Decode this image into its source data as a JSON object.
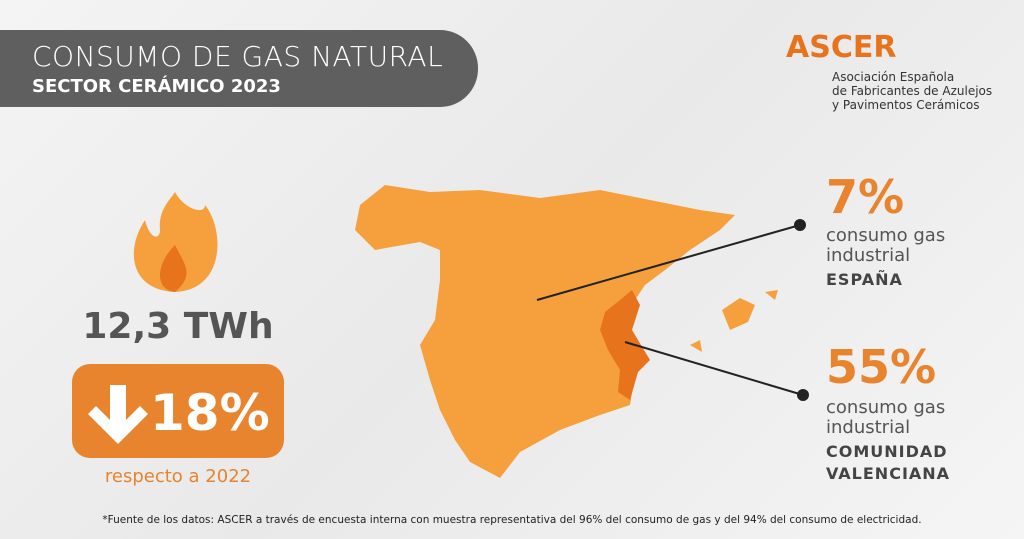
{
  "header": {
    "title": "CONSUMO DE GAS NATURAL",
    "subtitle": "SECTOR CERÁMICO 2023"
  },
  "logo": {
    "name": "ASCER",
    "description": [
      "Asociación Española",
      "de Fabricantes de Azulejos",
      "y Pavimentos Cerámicos"
    ]
  },
  "stats": {
    "consumption": "12,3 TWh",
    "change": "18%",
    "change_note": "respecto a 2022"
  },
  "callouts": [
    {
      "value": "7%",
      "lines": [
        "consumo gas",
        "industrial"
      ],
      "region": [
        "ESPAÑA"
      ]
    },
    {
      "value": "55%",
      "lines": [
        "consumo gas",
        "industrial"
      ],
      "region": [
        "COMUNIDAD",
        "VALENCIANA"
      ]
    }
  ],
  "footnote": "*Fuente de los datos: ASCER a través de encuesta interna con muestra representativa del 96% del consumo de gas y del 94% del consumo de electricidad."
}
